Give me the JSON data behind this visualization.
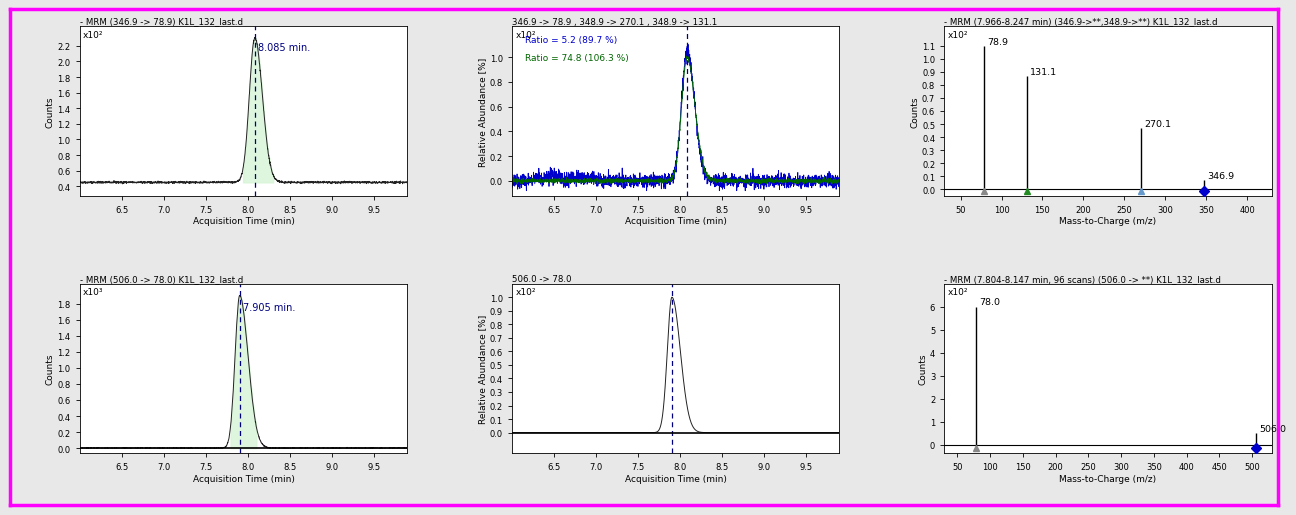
{
  "fig_width": 12.68,
  "fig_height": 4.96,
  "background_color": "#e8e8e8",
  "panel_bg": "#ffffff",
  "panel_titles": [
    "- MRM (346.9 -> 78.9) K1L_132_last.d",
    "346.9 -> 78.9 , 348.9 -> 270.1 , 348.9 -> 131.1",
    "- MRM (7.966-8.247 min) (346.9->**,348.9->**) K1L_132_last.d",
    "- MRM (506.0 -> 78.0) K1L_132_last.d",
    "506.0 -> 78.0",
    "- MRM (7.804-8.147 min, 96 scans) (506.0 -> **) K1L_132_last.d"
  ],
  "top_left": {
    "xlabel": "Acquisition Time (min)",
    "ylabel": "Counts",
    "ylabel_multiplier": "x10²",
    "xlim": [
      6.0,
      9.9
    ],
    "ylim": [
      0.28,
      2.45
    ],
    "xticks": [
      6.5,
      7.0,
      7.5,
      8.0,
      8.5,
      9.0,
      9.5
    ],
    "yticks": [
      0.4,
      0.6,
      0.8,
      1.0,
      1.2,
      1.4,
      1.6,
      1.8,
      2.0,
      2.2
    ],
    "peak_time": 8.085,
    "peak_label": "8.085 min.",
    "peak_height": 2.3,
    "noise_level": 0.45,
    "line_color": "#222222",
    "fill_color": "#d8f5d8"
  },
  "top_mid": {
    "xlabel": "Acquisition Time (min)",
    "ylabel": "Relative Abundance [%]",
    "ylabel_multiplier": "x10²",
    "xlim": [
      6.0,
      9.9
    ],
    "ylim": [
      -0.12,
      1.25
    ],
    "xticks": [
      6.5,
      7.0,
      7.5,
      8.0,
      8.5,
      9.0,
      9.5
    ],
    "yticks": [
      0.0,
      0.2,
      0.4,
      0.6,
      0.8,
      1.0
    ],
    "peak_time": 8.085,
    "peak_height_blue": 1.05,
    "peak_height_green": 1.0,
    "blue_color": "#0000cc",
    "green_color": "#006600",
    "annotation_blue": "Ratio = 5.2 (89.7 %)",
    "annotation_green": "Ratio = 74.8 (106.3 %)"
  },
  "top_right": {
    "xlabel": "Mass-to-Charge (m/z)",
    "ylabel": "Counts",
    "ylabel_multiplier": "x10²",
    "xlim": [
      30,
      430
    ],
    "ylim": [
      -0.05,
      1.25
    ],
    "xticks": [
      50,
      100,
      150,
      200,
      250,
      300,
      350,
      400
    ],
    "yticks": [
      0.0,
      0.1,
      0.2,
      0.3,
      0.4,
      0.5,
      0.6,
      0.7,
      0.8,
      0.9,
      1.0,
      1.1
    ],
    "peaks": [
      {
        "mz": 78.9,
        "intensity": 1.1,
        "label": "78.9",
        "marker_color": "#888888",
        "marker": "^"
      },
      {
        "mz": 131.1,
        "intensity": 0.87,
        "label": "131.1",
        "marker_color": "#228B22",
        "marker": "^"
      },
      {
        "mz": 270.1,
        "intensity": 0.47,
        "label": "270.1",
        "marker_color": "#6699cc",
        "marker": "^"
      },
      {
        "mz": 346.9,
        "intensity": 0.07,
        "label": "346.9",
        "marker_color": "#0000cc",
        "marker": "D"
      }
    ]
  },
  "bot_left": {
    "xlabel": "Acquisition Time (min)",
    "ylabel": "Counts",
    "ylabel_multiplier": "x10³",
    "xlim": [
      6.0,
      9.9
    ],
    "ylim": [
      -0.06,
      2.05
    ],
    "xticks": [
      6.5,
      7.0,
      7.5,
      8.0,
      8.5,
      9.0,
      9.5
    ],
    "yticks": [
      0.0,
      0.2,
      0.4,
      0.6,
      0.8,
      1.0,
      1.2,
      1.4,
      1.6,
      1.8
    ],
    "peak_time": 7.905,
    "peak_label": "7.905 min.",
    "peak_height": 1.9,
    "noise_level": 0.0,
    "line_color": "#222222",
    "fill_color": "#d8f5d8"
  },
  "bot_mid": {
    "xlabel": "Acquisition Time (min)",
    "ylabel": "Relative Abundance [%]",
    "ylabel_multiplier": "x10²",
    "xlim": [
      6.0,
      9.9
    ],
    "ylim": [
      -0.15,
      1.1
    ],
    "xticks": [
      6.5,
      7.0,
      7.5,
      8.0,
      8.5,
      9.0,
      9.5
    ],
    "yticks": [
      0.0,
      0.1,
      0.2,
      0.3,
      0.4,
      0.5,
      0.6,
      0.7,
      0.8,
      0.9,
      1.0
    ],
    "peak_time": 7.905,
    "peak_height": 1.0,
    "line_color": "#222222"
  },
  "bot_right": {
    "xlabel": "Mass-to-Charge (m/z)",
    "ylabel": "Counts",
    "ylabel_multiplier": "x10²",
    "xlim": [
      30,
      530
    ],
    "ylim": [
      -0.35,
      7.0
    ],
    "xticks": [
      50,
      100,
      150,
      200,
      250,
      300,
      350,
      400,
      450,
      500
    ],
    "yticks": [
      0,
      1,
      2,
      3,
      4,
      5,
      6
    ],
    "peaks": [
      {
        "mz": 78.0,
        "intensity": 6.0,
        "label": "78.0",
        "marker_color": "#888888",
        "marker": "^"
      },
      {
        "mz": 506.0,
        "intensity": 0.5,
        "label": "506.0",
        "marker_color": "#0000cc",
        "marker": "D"
      }
    ]
  }
}
